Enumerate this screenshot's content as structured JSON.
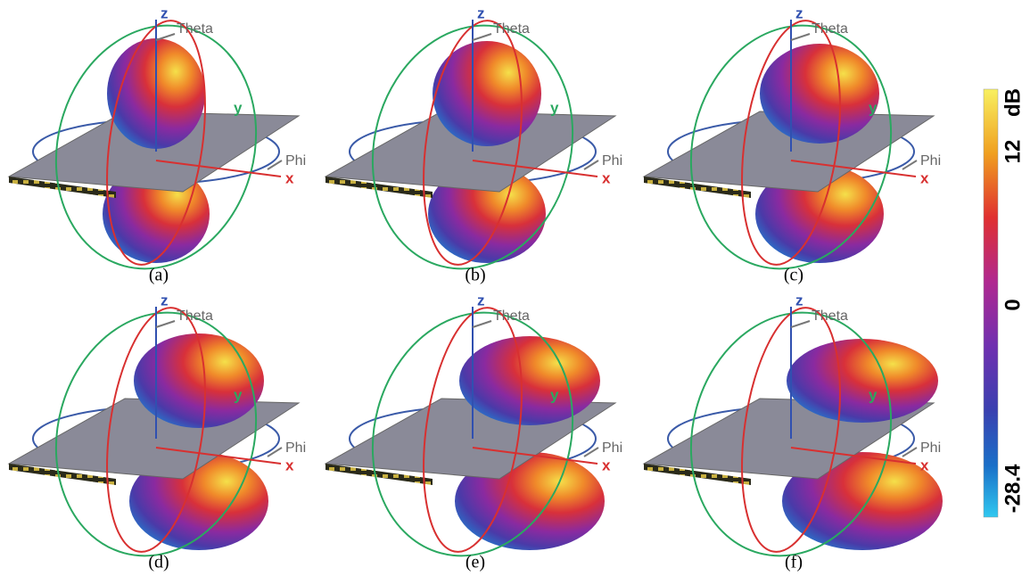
{
  "panels": [
    {
      "caption": "(a)",
      "z": "z",
      "theta": "Theta",
      "y": "y",
      "phi": "Phi",
      "x": "x"
    },
    {
      "caption": "(b)",
      "z": "z",
      "theta": "Theta",
      "y": "y",
      "phi": "Phi",
      "x": "x"
    },
    {
      "caption": "(c)",
      "z": "z",
      "theta": "Theta",
      "y": "y",
      "phi": "Phi",
      "x": "x"
    },
    {
      "caption": "(d)",
      "z": "z",
      "theta": "Theta",
      "y": "y",
      "phi": "Phi",
      "x": "x"
    },
    {
      "caption": "(e)",
      "z": "z",
      "theta": "Theta",
      "y": "y",
      "phi": "Phi",
      "x": "x"
    },
    {
      "caption": "(f)",
      "z": "z",
      "theta": "Theta",
      "y": "y",
      "phi": "Phi",
      "x": "x"
    }
  ],
  "colorbar": {
    "unit": "dB",
    "ticks": [
      12,
      0,
      -28.4
    ]
  }
}
